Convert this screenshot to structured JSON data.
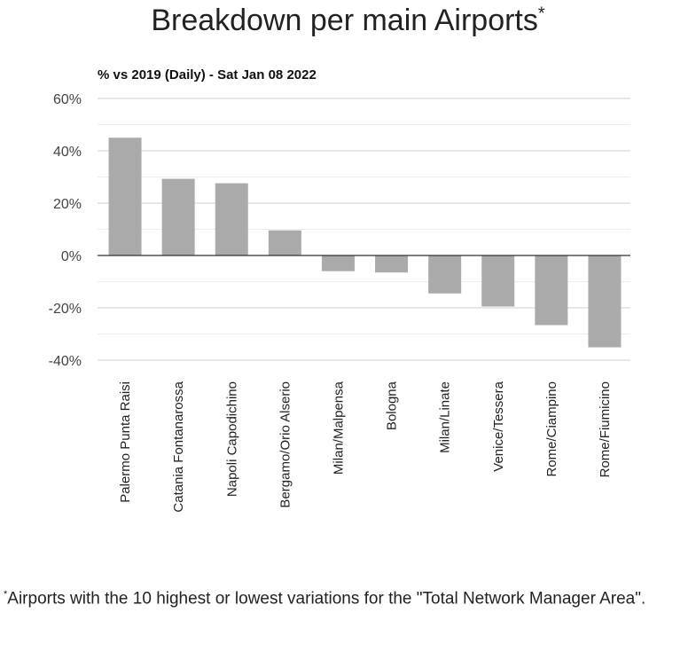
{
  "chart_data": {
    "type": "bar",
    "title": "Breakdown per main Airports",
    "title_marker": "*",
    "subtitle": "% vs 2019 (Daily) - Sat Jan 08 2022",
    "categories": [
      "Palermo Punta Raisi",
      "Catania Fontanarossa",
      "Napoli Capodichino",
      "Bergamo/Orio Alserio",
      "Milan/Malpensa",
      "Bologna",
      "Milan/Linate",
      "Venice/Tessera",
      "Rome/Ciampino",
      "Rome/Fiumicino"
    ],
    "values": [
      45,
      29.3,
      27.6,
      9.6,
      -6.0,
      -6.5,
      -14.5,
      -19.5,
      -26.6,
      -35.1
    ],
    "ylim": [
      -40,
      60
    ],
    "yticks": [
      "60%",
      "40%",
      "20%",
      "0%",
      "-20%",
      "-40%"
    ],
    "grid": true,
    "bar_color": "#aaaaaa"
  },
  "footnote": {
    "marker": "*",
    "text": "Airports with the 10 highest or lowest variations for the \"Total Network Manager Area\"."
  }
}
